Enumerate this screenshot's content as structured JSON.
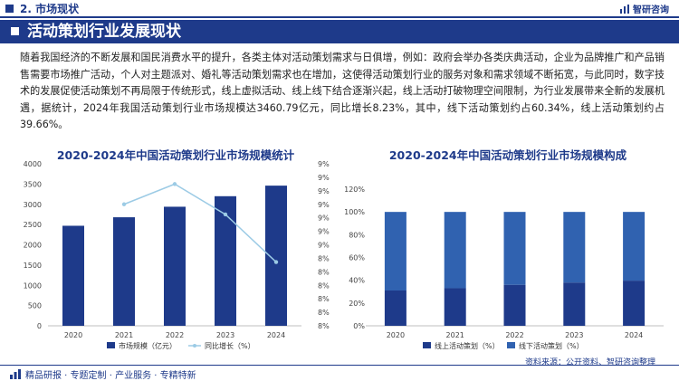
{
  "header": {
    "section_title": "2. 市场现状",
    "logo_text": "智研咨询",
    "logo_icon": "bar-logo-icon"
  },
  "banner": {
    "title": "活动策划行业发展现状"
  },
  "paragraph": "随着我国经济的不断发展和国民消费水平的提升，各类主体对活动策划需求与日俱增，例如：政府会举办各类庆典活动，企业为品牌推广和产品销售需要市场推广活动，个人对主题派对、婚礼等活动策划需求也在增加，这使得活动策划行业的服务对象和需求领域不断拓宽，与此同时，数字技术的发展促使活动策划不再局限于传统形式，线上虚拟活动、线上线下结合逐渐兴起，线上活动打破物理空间限制，为行业发展带来全新的发展机遇，据统计，2024年我国活动策划行业市场规模达3460.79亿元，同比增长8.23%，其中，线下活动策划约占60.34%，线上活动策划约占39.66%。",
  "colors": {
    "brand": "#1e3a8a",
    "bar_dark": "#1e3a8a",
    "bar_light": "#3062b0",
    "line": "#9ccbe5"
  },
  "chart_data": [
    {
      "type": "bar",
      "title": "2020-2024年中国活动策划行业市场规模统计",
      "categories": [
        "2020",
        "2021",
        "2022",
        "2023",
        "2024"
      ],
      "series": [
        {
          "name": "市场规模（亿元）",
          "kind": "bar",
          "axis": "left",
          "values": [
            2470,
            2680,
            2940,
            3200,
            3460.79
          ]
        },
        {
          "name": "同比增长（%）",
          "kind": "line",
          "axis": "right",
          "values": [
            null,
            8.8,
            9.0,
            8.7,
            8.23
          ]
        }
      ],
      "y_left": {
        "min": 0,
        "max": 4000,
        "ticks": [
          "0",
          "500",
          "1000",
          "1500",
          "2000",
          "2500",
          "3000",
          "3500",
          "4000"
        ]
      },
      "y_right": {
        "min": 7.6,
        "max": 9.2,
        "ticks": [
          "8%",
          "8%",
          "8%",
          "8%",
          "8%",
          "8%",
          "9%",
          "9%",
          "9%",
          "9%",
          "9%",
          "9%",
          "9%"
        ]
      },
      "legend_position": "bottom",
      "grid": false
    },
    {
      "type": "bar",
      "stacked": true,
      "title": "2020-2024年中国活动策划行业市场规模构成",
      "categories": [
        "2020",
        "2021",
        "2022",
        "2023",
        "2024"
      ],
      "series": [
        {
          "name": "线上活动策划（%）",
          "values": [
            31,
            33,
            36,
            38,
            39.66
          ]
        },
        {
          "name": "线下活动策划（%）",
          "values": [
            69,
            67,
            64,
            62,
            60.34
          ]
        }
      ],
      "y": {
        "min": 0,
        "max": 120,
        "ticks": [
          "0%",
          "20%",
          "40%",
          "60%",
          "80%",
          "100%",
          "120%"
        ]
      },
      "legend_position": "bottom",
      "grid": false
    }
  ],
  "footer": {
    "left_text": "精品研报 · 专题定制 · 产业服务 · 专精特新",
    "source": "资料来源：公开资料、智研咨询整理"
  }
}
